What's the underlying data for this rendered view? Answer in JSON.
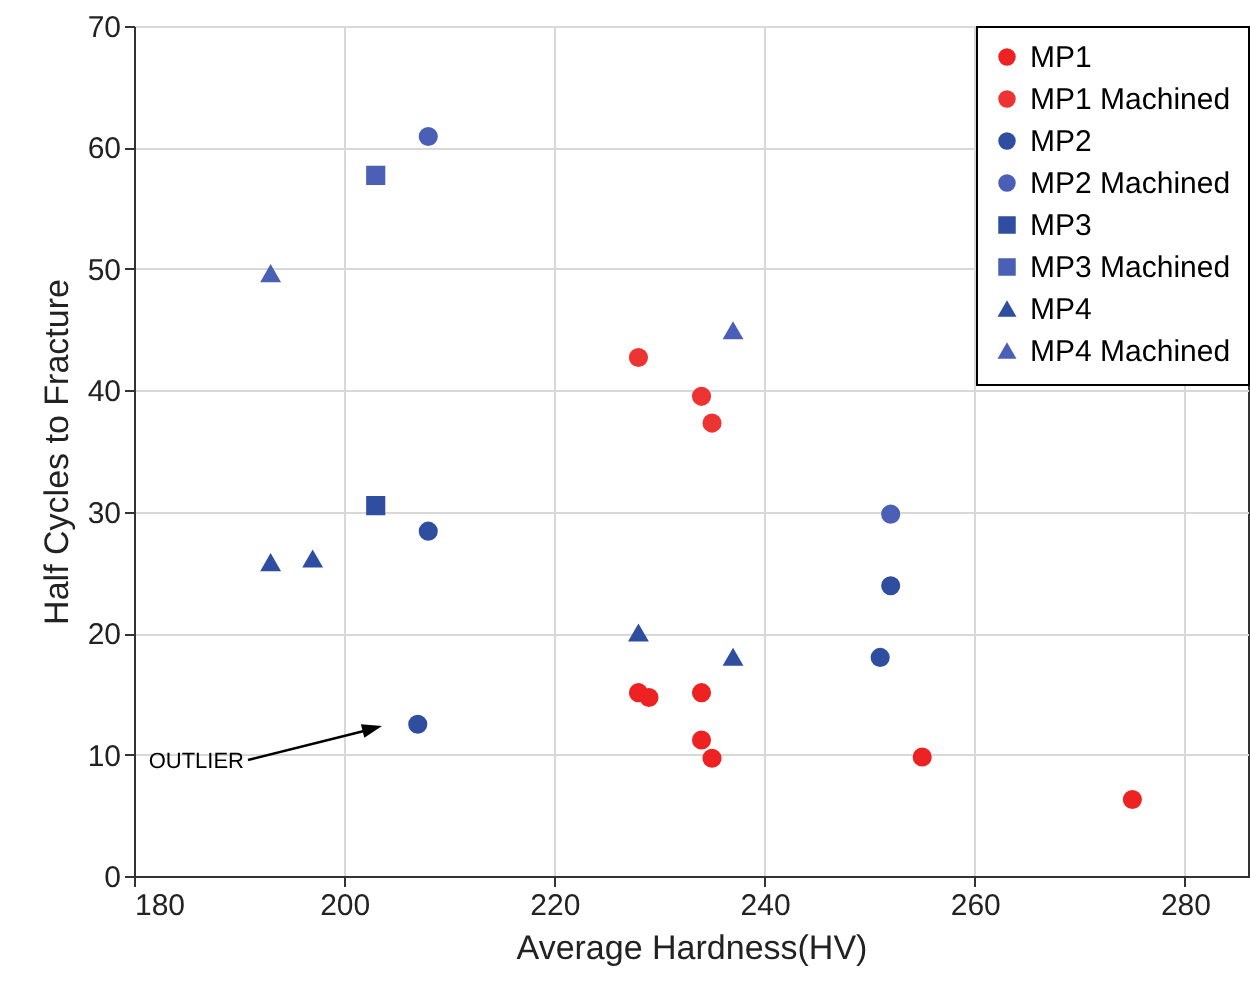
{
  "chart_data": {
    "type": "scatter",
    "xlabel": "Average Hardness(HV)",
    "ylabel": "Half Cycles to Fracture",
    "xlim": [
      180,
      286
    ],
    "xticks": [
      180,
      200,
      220,
      240,
      260,
      280
    ],
    "ylim": [
      0,
      70
    ],
    "yticks": [
      0,
      10,
      20,
      30,
      40,
      50,
      60,
      70
    ],
    "grid": true,
    "legend": "top right",
    "annotations": [
      "OUTLIER"
    ],
    "series": [
      {
        "name": "MP1",
        "color": "#ee2222",
        "marker": "circle",
        "x": [
          228,
          229,
          234,
          234,
          235,
          255,
          275
        ],
        "values": [
          15.1,
          14.7,
          15.1,
          11.2,
          9.7,
          9.8,
          6.3
        ]
      },
      {
        "name": "MP1 Machined",
        "color": "#ee3333",
        "marker": "circle",
        "x": [
          228,
          234,
          235
        ],
        "values": [
          42.7,
          39.5,
          37.3
        ]
      },
      {
        "name": "MP2",
        "color": "#2f4ea0",
        "marker": "circle",
        "x": [
          208,
          207,
          252,
          251
        ],
        "values": [
          28.4,
          12.5,
          23.9,
          18
        ]
      },
      {
        "name": "MP2 Machined",
        "color": "#4a5fb5",
        "marker": "circle",
        "x": [
          208,
          252
        ],
        "values": [
          60.9,
          29.8
        ]
      },
      {
        "name": "MP3",
        "color": "#2f4ea0",
        "marker": "square",
        "x": [
          203
        ],
        "values": [
          30.5
        ]
      },
      {
        "name": "MP3 Machined",
        "color": "#4a5fb5",
        "marker": "square",
        "x": [
          203
        ],
        "values": [
          57.7
        ]
      },
      {
        "name": "MP4",
        "color": "#2f4ea0",
        "marker": "triangle",
        "x": [
          193,
          197,
          228,
          237
        ],
        "values": [
          25.8,
          26.1,
          20,
          18
        ]
      },
      {
        "name": "MP4 Machined",
        "color": "#4a5fb5",
        "marker": "triangle",
        "x": [
          193,
          237
        ],
        "values": [
          49.6,
          44.9
        ]
      }
    ]
  }
}
